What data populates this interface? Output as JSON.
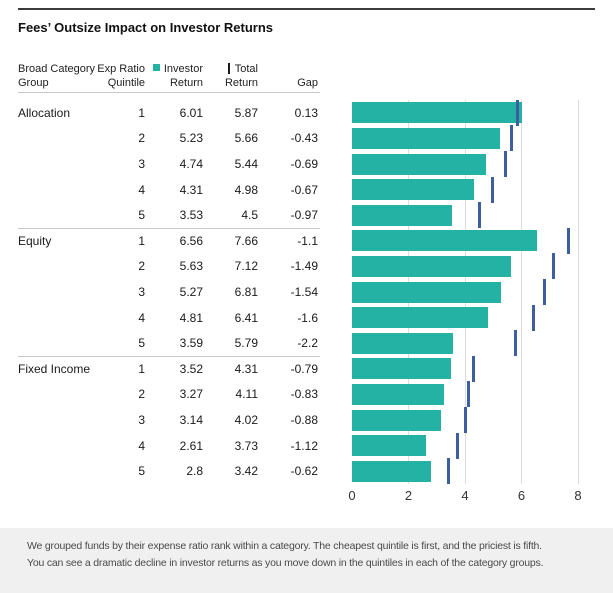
{
  "title": "Fees’ Outsize Impact on Investor Returns",
  "colors": {
    "bar": "#23b2a3",
    "marker": "#3d5f9d",
    "legend_marker": "#1a1a1a",
    "gridline": "#dcdcdc",
    "rule": "#3c3c3c",
    "separator": "#c8c8c8",
    "footer_bg": "#f0f0f0",
    "text": "#1a1a1a"
  },
  "table": {
    "headers": {
      "category": [
        "Broad Category",
        "Group"
      ],
      "quintile": [
        "Exp Ratio",
        "Quintile"
      ],
      "investor": [
        "Investor",
        "Return"
      ],
      "total": [
        "Total",
        "Return"
      ],
      "gap": "Gap"
    },
    "groups": [
      {
        "name": "Allocation",
        "rows": [
          {
            "quintile": "1",
            "investor": "6.01",
            "total": "5.87",
            "gap": "0.13"
          },
          {
            "quintile": "2",
            "investor": "5.23",
            "total": "5.66",
            "gap": "-0.43"
          },
          {
            "quintile": "3",
            "investor": "4.74",
            "total": "5.44",
            "gap": "-0.69"
          },
          {
            "quintile": "4",
            "investor": "4.31",
            "total": "4.98",
            "gap": "-0.67"
          },
          {
            "quintile": "5",
            "investor": "3.53",
            "total": "4.5",
            "gap": "-0.97"
          }
        ]
      },
      {
        "name": "Equity",
        "rows": [
          {
            "quintile": "1",
            "investor": "6.56",
            "total": "7.66",
            "gap": "-1.1"
          },
          {
            "quintile": "2",
            "investor": "5.63",
            "total": "7.12",
            "gap": "-1.49"
          },
          {
            "quintile": "3",
            "investor": "5.27",
            "total": "6.81",
            "gap": "-1.54"
          },
          {
            "quintile": "4",
            "investor": "4.81",
            "total": "6.41",
            "gap": "-1.6"
          },
          {
            "quintile": "5",
            "investor": "3.59",
            "total": "5.79",
            "gap": "-2.2"
          }
        ]
      },
      {
        "name": "Fixed Income",
        "rows": [
          {
            "quintile": "1",
            "investor": "3.52",
            "total": "4.31",
            "gap": "-0.79"
          },
          {
            "quintile": "2",
            "investor": "3.27",
            "total": "4.11",
            "gap": "-0.83"
          },
          {
            "quintile": "3",
            "investor": "3.14",
            "total": "4.02",
            "gap": "-0.88"
          },
          {
            "quintile": "4",
            "investor": "2.61",
            "total": "3.73",
            "gap": "-1.12"
          },
          {
            "quintile": "5",
            "investor": "2.8",
            "total": "3.42",
            "gap": "-0.62"
          }
        ]
      }
    ]
  },
  "chart_data": {
    "type": "bar",
    "orientation": "horizontal",
    "title": "Fees’ Outsize Impact on Investor Returns",
    "categories": [
      "Allocation Q1",
      "Allocation Q2",
      "Allocation Q3",
      "Allocation Q4",
      "Allocation Q5",
      "Equity Q1",
      "Equity Q2",
      "Equity Q3",
      "Equity Q4",
      "Equity Q5",
      "Fixed Income Q1",
      "Fixed Income Q2",
      "Fixed Income Q3",
      "Fixed Income Q4",
      "Fixed Income Q5"
    ],
    "series": [
      {
        "name": "Investor Return",
        "style": "bar",
        "color": "#23b2a3",
        "values": [
          6.01,
          5.23,
          4.74,
          4.31,
          3.53,
          6.56,
          5.63,
          5.27,
          4.81,
          3.59,
          3.52,
          3.27,
          3.14,
          2.61,
          2.8
        ]
      },
      {
        "name": "Total Return",
        "style": "tick-marker",
        "color": "#3d5f9d",
        "values": [
          5.87,
          5.66,
          5.44,
          4.98,
          4.5,
          7.66,
          7.12,
          6.81,
          6.41,
          5.79,
          4.31,
          4.11,
          4.02,
          3.73,
          3.42
        ]
      }
    ],
    "gap_values": [
      0.13,
      -0.43,
      -0.69,
      -0.67,
      -0.97,
      -1.1,
      -1.49,
      -1.54,
      -1.6,
      -2.2,
      -0.79,
      -0.83,
      -0.88,
      -1.12,
      -0.62
    ],
    "xlim": [
      0,
      8
    ],
    "xticks": [
      0,
      2,
      4,
      6,
      8
    ],
    "grid": "vertical",
    "legend_position": "top"
  },
  "footer": {
    "line1": "We grouped funds by their expense ratio rank within a category. The cheapest quintile is first, and the priciest is fifth.",
    "line2": "You can see a dramatic decline in investor returns as you move down in the quintiles in each of the category groups."
  }
}
